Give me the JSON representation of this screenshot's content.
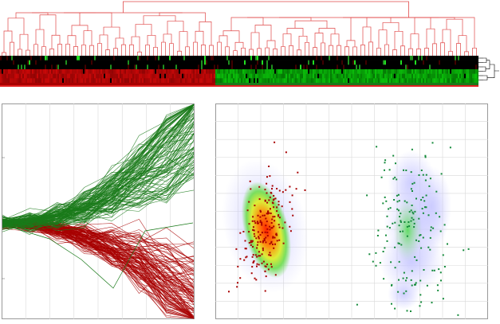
{
  "colors": {
    "cluster_red": "#a80000",
    "cluster_red_light": "#d04040",
    "cluster_green": "#1a7a1a",
    "cluster_green_bright": "#22dd22",
    "dendrogram": "#e04848",
    "panel_border": "#999999",
    "grid": "#d8d8d8",
    "density_low": "#c8c8ff",
    "density_mid": "#66dd44",
    "density_high": "#ff2200"
  },
  "panels": {
    "dendrogram": "column-dendrogram",
    "heatmap": "expression-heatmap",
    "profiles": "expression-profile-plot",
    "scatter": "cluster-scatter-density-plot"
  },
  "chart_data": [
    {
      "type": "heatmap",
      "rows": 6,
      "columns": 300,
      "clusters": [
        {
          "color": "red",
          "column_fraction": 0.45
        },
        {
          "color": "green",
          "column_fraction": 0.55
        }
      ],
      "dendrogram": "top",
      "row_dendrogram": "right"
    },
    {
      "type": "line",
      "x_points": 8,
      "series_groups": [
        {
          "color": "green",
          "count": 110,
          "trend": "rising"
        },
        {
          "color": "red",
          "count": 110,
          "trend": "falling"
        }
      ],
      "grid": true
    },
    {
      "type": "scatter",
      "clusters": [
        {
          "color": "red",
          "count": 200,
          "center": [
            0.18,
            0.55
          ]
        },
        {
          "color": "green",
          "count": 180,
          "center": [
            0.72,
            0.55
          ]
        }
      ],
      "density_overlay": true,
      "grid": true
    }
  ]
}
